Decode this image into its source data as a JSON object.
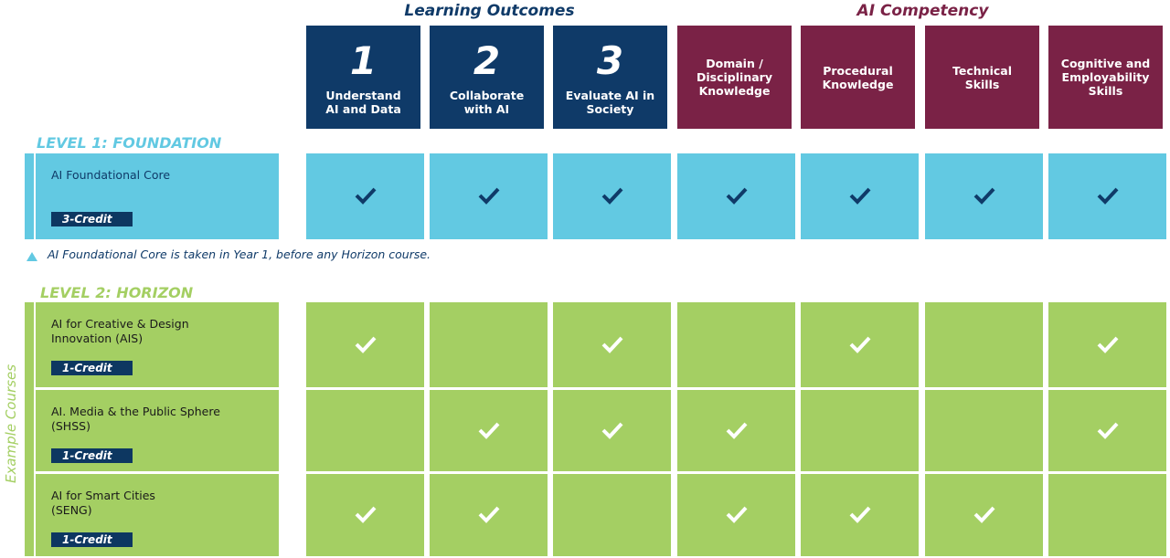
{
  "header": {
    "groups": [
      {
        "title": "Learning Outcomes",
        "color": "#0f3a68",
        "span": 3
      },
      {
        "title": "AI Competency",
        "color": "#7a2246",
        "span": 4
      }
    ],
    "columns": [
      {
        "number": "1",
        "label": "Understand\nAI and Data"
      },
      {
        "number": "2",
        "label": "Collaborate\nwith AI"
      },
      {
        "number": "3",
        "label": "Evaluate AI in\nSociety"
      },
      {
        "label": "Domain /\nDisciplinary\nKnowledge"
      },
      {
        "label": "Procedural\nKnowledge"
      },
      {
        "label": "Technical\nSkills"
      },
      {
        "label": "Cognitive and\nEmployability\nSkills"
      }
    ]
  },
  "level1": {
    "title": "LEVEL 1: FOUNDATION",
    "color": "#62c9e2",
    "check_color": "#0f3a68",
    "rows": [
      {
        "name": "AI Foundational Core",
        "credit": "3-Credit",
        "checks": [
          true,
          true,
          true,
          true,
          true,
          true,
          true
        ]
      }
    ],
    "note": "AI Foundational Core is taken in Year 1, before any Horizon course."
  },
  "level2": {
    "title": "LEVEL 2: HORIZON",
    "side_label": "Example Courses",
    "color": "#a4cf63",
    "check_color": "#ffffff",
    "rows": [
      {
        "name": "AI for Creative & Design\nInnovation (AIS)",
        "credit": "1-Credit",
        "checks": [
          true,
          false,
          true,
          false,
          true,
          false,
          true
        ]
      },
      {
        "name": "AI. Media & the Public Sphere\n(SHSS)",
        "credit": "1-Credit",
        "checks": [
          false,
          true,
          true,
          true,
          false,
          false,
          true
        ]
      },
      {
        "name": "AI for Smart Cities\n(SENG)",
        "credit": "1-Credit",
        "checks": [
          true,
          true,
          false,
          true,
          true,
          true,
          false
        ]
      }
    ]
  }
}
